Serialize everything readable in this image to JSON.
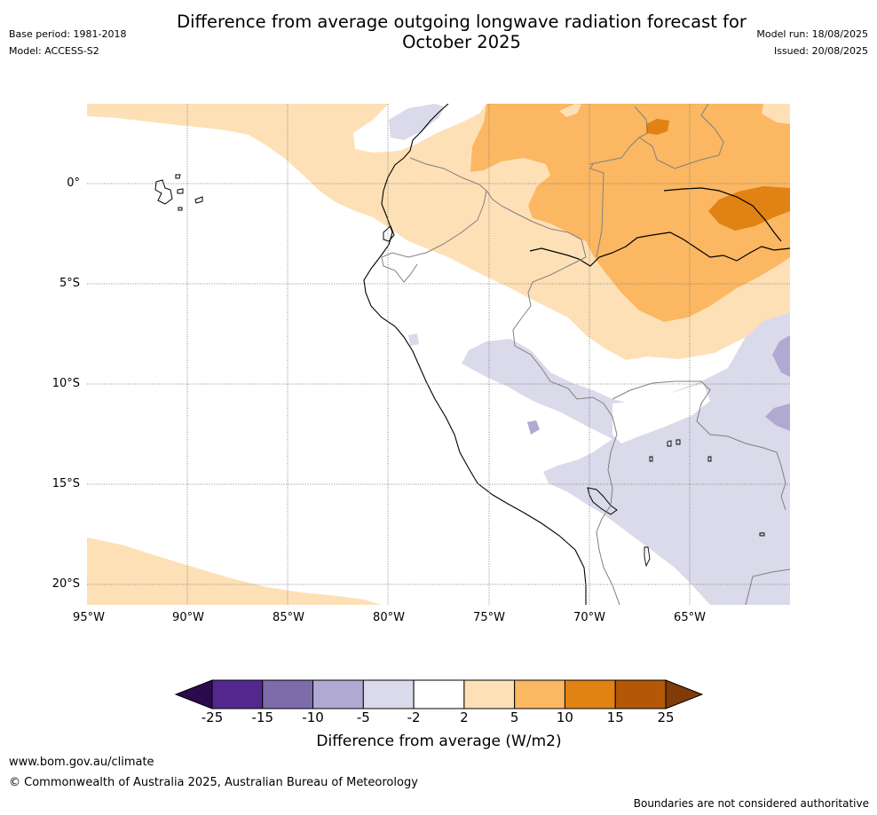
{
  "title_line1": "Difference from average outgoing longwave radiation forecast for",
  "title_line2": "October 2025",
  "base_period": "Base period: 1981-2018",
  "model": "Model: ACCESS-S2",
  "model_run": "Model run: 18/08/2025",
  "issued": "Issued: 20/08/2025",
  "lat_labels": [
    "0°",
    "5°S",
    "10°S",
    "15°S",
    "20°S"
  ],
  "lon_labels": [
    "95°W",
    "90°W",
    "85°W",
    "80°W",
    "75°W",
    "70°W",
    "65°W"
  ],
  "colorbar": {
    "ticks": [
      "-25",
      "-15",
      "-10",
      "-5",
      "-2",
      "2",
      "5",
      "10",
      "15",
      "25"
    ],
    "colors": [
      "#2c0a4e",
      "#54278f",
      "#7d6ca9",
      "#b0a9d2",
      "#dadaeb",
      "#ffffff",
      "#fee0b6",
      "#fbb761",
      "#e08214",
      "#b35806",
      "#7f3b08"
    ],
    "label": "Difference from average (W/m2)"
  },
  "website": "www.bom.gov.au/climate",
  "copyright": "© Commonwealth of Australia 2025, Australian Bureau of Meteorology",
  "disclaimer": "Boundaries are not considered authoritative"
}
